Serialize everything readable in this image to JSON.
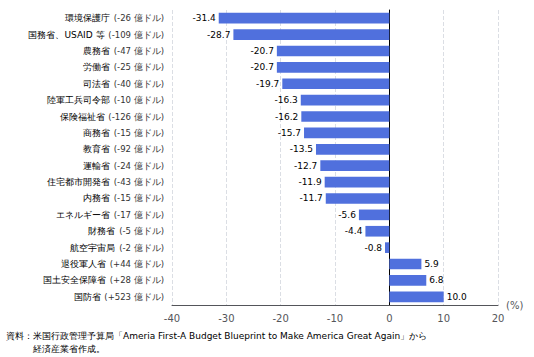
{
  "chart_data": {
    "type": "bar",
    "orientation": "horizontal",
    "categories": [
      "国防省",
      "国土安全保障省",
      "退役軍人省",
      "航空宇宙局",
      "財務省",
      "エネルギー省",
      "内務省",
      "住宅都市開発省",
      "運輸省",
      "教育省",
      "商務省",
      "保険福祉省",
      "陸軍工兵司令部",
      "司法省",
      "労働省",
      "農務省",
      "国務省、USAID 等",
      "環境保護庁"
    ],
    "sublabels": [
      "(+523 億ドル)",
      "(+28 億ドル)",
      "(+44 億ドル)",
      "(-2 億ドル)",
      "(-5 億ドル)",
      "(-17 億ドル)",
      "(-15 億ドル)",
      "(-43 億ドル)",
      "(-24 億ドル)",
      "(-92 億ドル)",
      "(-15 億ドル)",
      "(-126 億ドル)",
      "(-10 億ドル)",
      "(-40 億ドル)",
      "(-25 億ドル)",
      "(-47 億ドル)",
      "(-109 億ドル)",
      "(-26 億ドル)"
    ],
    "values": [
      10.0,
      6.8,
      5.9,
      -0.8,
      -4.4,
      -5.6,
      -11.7,
      -11.9,
      -12.7,
      -13.5,
      -15.7,
      -16.2,
      -16.3,
      -19.7,
      -20.7,
      -20.7,
      -28.7,
      -31.4
    ],
    "value_labels": [
      "10.0",
      "6.8",
      "5.9",
      "-0.8",
      "-4.4",
      "-5.6",
      "-11.7",
      "-11.9",
      "-12.7",
      "-13.5",
      "-15.7",
      "-16.2",
      "-16.3",
      "-19.7",
      "-20.7",
      "-20.7",
      "-28.7",
      "-31.4"
    ],
    "data_labels": true,
    "xlabel": "(%)",
    "xlim": [
      -40,
      20
    ],
    "xticks": [
      -40,
      -30,
      -20,
      -10,
      0,
      10,
      20
    ],
    "grid": true,
    "annotations": [
      "資料：米国行政管理予算局「Ameria First-A Budget Blueprint to Make America Great Again」から",
      "　　　経済産業省作成。"
    ]
  }
}
